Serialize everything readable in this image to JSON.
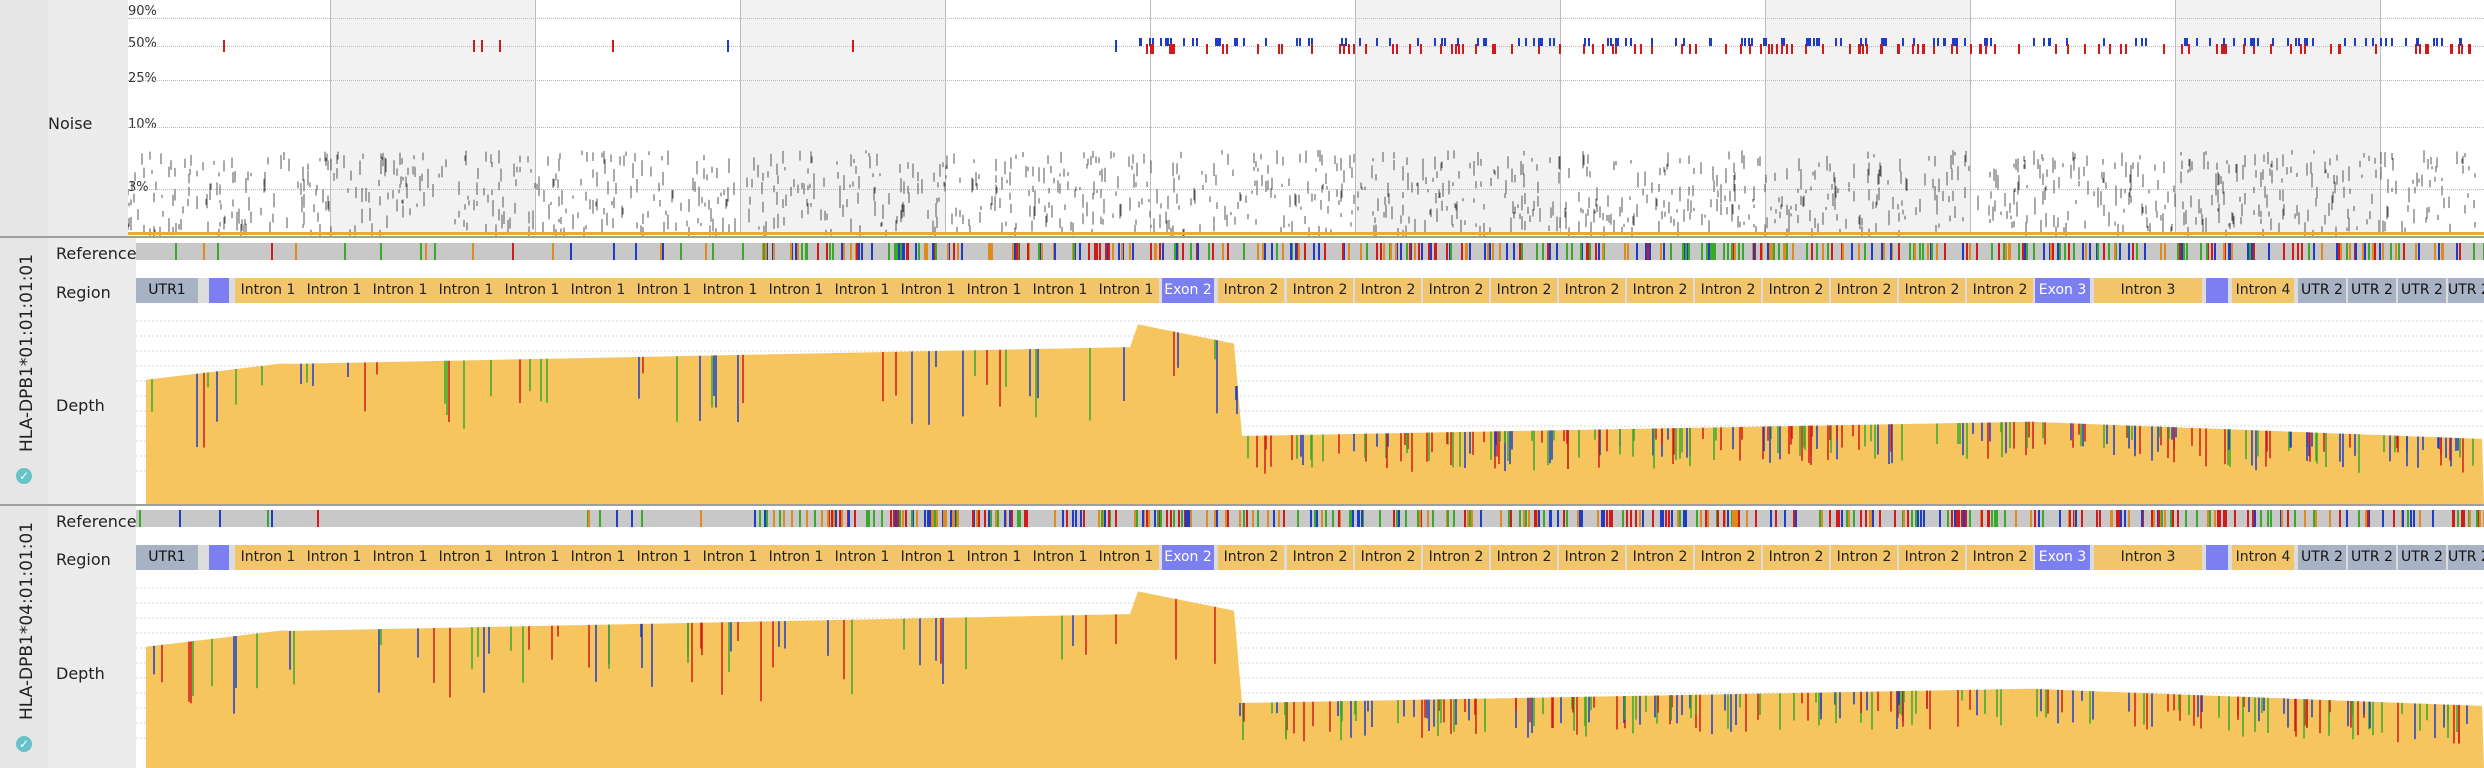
{
  "noise_panel": {
    "label": "Noise",
    "ticks": [
      "90%",
      "50%",
      "25%",
      "10%",
      "3%"
    ]
  },
  "track_labels": {
    "reference": "Reference",
    "region": "Region",
    "depth": "Depth"
  },
  "samples": [
    {
      "name": "HLA-DPB1*01:01:01:01",
      "status_icon": "check-circle-icon"
    },
    {
      "name": "HLA-DPB1*04:01:01:01",
      "status_icon": "check-circle-icon"
    }
  ],
  "regions": [
    {
      "label": "UTR1",
      "type": "utr"
    },
    {
      "label": "",
      "type": "exon"
    },
    {
      "label": "Intron 1",
      "type": "intron"
    },
    {
      "label": "Intron 1",
      "type": "intron"
    },
    {
      "label": "Intron 1",
      "type": "intron"
    },
    {
      "label": "Intron 1",
      "type": "intron"
    },
    {
      "label": "Intron 1",
      "type": "intron"
    },
    {
      "label": "Intron 1",
      "type": "intron"
    },
    {
      "label": "Intron 1",
      "type": "intron"
    },
    {
      "label": "Intron 1",
      "type": "intron"
    },
    {
      "label": "Intron 1",
      "type": "intron"
    },
    {
      "label": "Intron 1",
      "type": "intron"
    },
    {
      "label": "Intron 1",
      "type": "intron"
    },
    {
      "label": "Intron 1",
      "type": "intron"
    },
    {
      "label": "Intron 1",
      "type": "intron"
    },
    {
      "label": "Intron 1",
      "type": "intron"
    },
    {
      "label": "Exon 2",
      "type": "exon"
    },
    {
      "label": "Intron 2",
      "type": "intron"
    },
    {
      "label": "Intron 2",
      "type": "intron"
    },
    {
      "label": "Intron 2",
      "type": "intron"
    },
    {
      "label": "Intron 2",
      "type": "intron"
    },
    {
      "label": "Intron 2",
      "type": "intron"
    },
    {
      "label": "Intron 2",
      "type": "intron"
    },
    {
      "label": "Intron 2",
      "type": "intron"
    },
    {
      "label": "Intron 2",
      "type": "intron"
    },
    {
      "label": "Intron 2",
      "type": "intron"
    },
    {
      "label": "Intron 2",
      "type": "intron"
    },
    {
      "label": "Intron 2",
      "type": "intron"
    },
    {
      "label": "Intron 2",
      "type": "intron"
    },
    {
      "label": "Exon 3",
      "type": "exon"
    },
    {
      "label": "Intron 3",
      "type": "intron"
    },
    {
      "label": "",
      "type": "exon"
    },
    {
      "label": "Intron 4",
      "type": "intron"
    },
    {
      "label": "UTR 2",
      "type": "utr"
    },
    {
      "label": "UTR 2",
      "type": "utr"
    },
    {
      "label": "UTR 2",
      "type": "utr"
    },
    {
      "label": "UTR 2",
      "type": "utr"
    }
  ],
  "colors": {
    "depth_fill": "#f6c55e",
    "intron": "#f2c56b",
    "exon": "#7b7ff0",
    "utr": "#a7b2c4",
    "reference_bar": "#c8c8c8",
    "noise_marks": "#555555",
    "snp_red": "#d11a1a",
    "snp_blue": "#1f3cc8",
    "snp_green": "#39a82b",
    "snp_orange": "#e08a1e"
  }
}
